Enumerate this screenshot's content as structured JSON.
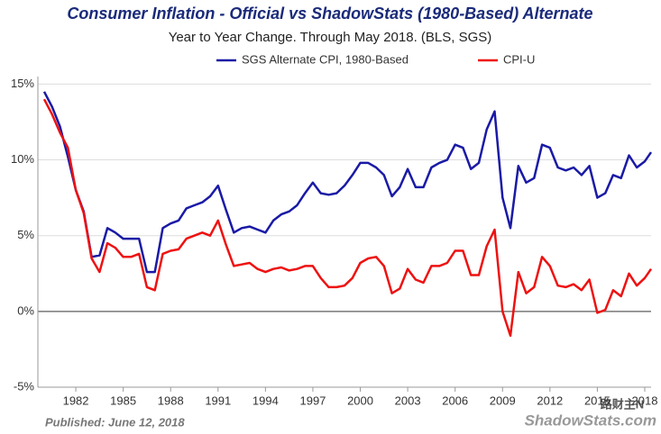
{
  "chart_data": {
    "type": "line",
    "title": "Consumer Inflation - Official vs ShadowStats (1980-Based) Alternate",
    "subtitle": "Year to Year Change. Through May 2018.   (BLS, SGS)",
    "footnote": "Published: June 12, 2018",
    "source": "ShadowStats.com",
    "watermark": "路财主N",
    "legend": "top",
    "grid": true,
    "xlim": [
      1979.6,
      2018.4
    ],
    "xticks": [
      1982,
      1985,
      1988,
      1991,
      1994,
      1997,
      2000,
      2003,
      2006,
      2009,
      2012,
      2015,
      2018
    ],
    "ylim": [
      -5,
      15.5
    ],
    "yticks": [
      {
        "value": -5,
        "label": "-5%"
      },
      {
        "value": 0,
        "label": "0%"
      },
      {
        "value": 5,
        "label": "5%"
      },
      {
        "value": 10,
        "label": "10%"
      },
      {
        "value": 15,
        "label": "15%"
      }
    ],
    "x": [
      1980.0,
      1980.5,
      1981.0,
      1981.5,
      1982.0,
      1982.5,
      1983.0,
      1983.5,
      1984.0,
      1984.5,
      1985.0,
      1985.5,
      1986.0,
      1986.5,
      1987.0,
      1987.5,
      1988.0,
      1988.5,
      1989.0,
      1989.5,
      1990.0,
      1990.5,
      1991.0,
      1991.5,
      1992.0,
      1992.5,
      1993.0,
      1993.5,
      1994.0,
      1994.5,
      1995.0,
      1995.5,
      1996.0,
      1996.5,
      1997.0,
      1997.5,
      1998.0,
      1998.5,
      1999.0,
      1999.5,
      2000.0,
      2000.5,
      2001.0,
      2001.5,
      2002.0,
      2002.5,
      2003.0,
      2003.5,
      2004.0,
      2004.5,
      2005.0,
      2005.5,
      2006.0,
      2006.5,
      2007.0,
      2007.5,
      2008.0,
      2008.5,
      2009.0,
      2009.5,
      2010.0,
      2010.5,
      2011.0,
      2011.5,
      2012.0,
      2012.5,
      2013.0,
      2013.5,
      2014.0,
      2014.5,
      2015.0,
      2015.5,
      2016.0,
      2016.5,
      2017.0,
      2017.5,
      2018.0,
      2018.4
    ],
    "series": [
      {
        "name": "SGS Alternate CPI, 1980-Based",
        "color": "#1a1aa6",
        "values": [
          14.5,
          13.5,
          12.2,
          10.2,
          8.0,
          6.6,
          3.6,
          3.7,
          5.5,
          5.2,
          4.8,
          4.8,
          4.8,
          2.6,
          2.6,
          5.5,
          5.8,
          6.0,
          6.8,
          7.0,
          7.2,
          7.6,
          8.3,
          6.7,
          5.2,
          5.5,
          5.6,
          5.4,
          5.2,
          6.0,
          6.4,
          6.6,
          7.0,
          7.8,
          8.5,
          7.8,
          7.7,
          7.8,
          8.3,
          9.0,
          9.8,
          9.8,
          9.5,
          9.0,
          7.6,
          8.2,
          9.4,
          8.2,
          8.2,
          9.5,
          9.8,
          10.0,
          11.0,
          10.8,
          9.4,
          9.8,
          12.0,
          13.2,
          7.5,
          5.5,
          9.6,
          8.5,
          8.8,
          11.0,
          10.8,
          9.5,
          9.3,
          9.5,
          9.0,
          9.6,
          7.5,
          7.8,
          9.0,
          8.8,
          10.3,
          9.5,
          9.9,
          10.5
        ]
      },
      {
        "name": "CPI-U",
        "color": "#ee1111",
        "values": [
          14.0,
          13.0,
          11.8,
          10.8,
          8.0,
          6.5,
          3.5,
          2.6,
          4.5,
          4.2,
          3.6,
          3.6,
          3.8,
          1.6,
          1.4,
          3.8,
          4.0,
          4.1,
          4.8,
          5.0,
          5.2,
          5.0,
          6.0,
          4.4,
          3.0,
          3.1,
          3.2,
          2.8,
          2.6,
          2.8,
          2.9,
          2.7,
          2.8,
          3.0,
          3.0,
          2.2,
          1.6,
          1.6,
          1.7,
          2.2,
          3.2,
          3.5,
          3.6,
          3.0,
          1.2,
          1.5,
          2.8,
          2.1,
          1.9,
          3.0,
          3.0,
          3.2,
          4.0,
          4.0,
          2.4,
          2.4,
          4.3,
          5.4,
          0.0,
          -1.6,
          2.6,
          1.2,
          1.6,
          3.6,
          3.0,
          1.7,
          1.6,
          1.8,
          1.4,
          2.1,
          -0.1,
          0.1,
          1.4,
          1.0,
          2.5,
          1.7,
          2.2,
          2.8
        ]
      }
    ]
  }
}
